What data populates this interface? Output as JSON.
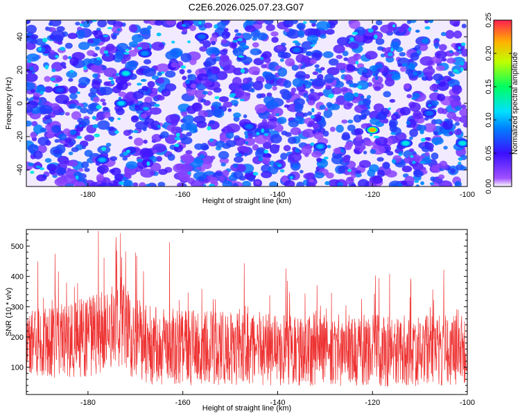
{
  "title": "C2E6.2026.025.07.23.G07",
  "chart_data": [
    {
      "type": "heatmap",
      "title": "",
      "xlabel": "Height of straight line (km)",
      "ylabel": "Frequency (Hz)",
      "xlim": [
        -193,
        -100
      ],
      "ylim": [
        -50,
        50
      ],
      "xticks": [
        -180,
        -160,
        -140,
        -120,
        -100
      ],
      "yticks": [
        -40,
        -20,
        0,
        20,
        40
      ],
      "colorbar": {
        "label": "Normalized spectral amplitude",
        "range": [
          0.0,
          0.25
        ],
        "ticks": [
          0.0,
          0.05,
          0.1,
          0.15,
          0.2,
          0.25
        ],
        "tick_labels": [
          "0.00",
          "0.05",
          "0.10",
          "0.15",
          "0.20",
          "0.25"
        ]
      },
      "background_level": 0.04,
      "peaks": [
        {
          "x": -120,
          "y": -16,
          "value": 0.22
        },
        {
          "x": -172,
          "y": 18,
          "value": 0.12
        },
        {
          "x": -173,
          "y": 0,
          "value": 0.11
        },
        {
          "x": -113,
          "y": -24,
          "value": 0.12
        },
        {
          "x": -101,
          "y": -24,
          "value": 0.12
        },
        {
          "x": -131,
          "y": -26,
          "value": 0.1
        },
        {
          "x": -177,
          "y": -34,
          "value": 0.1
        },
        {
          "x": -168,
          "y": 30,
          "value": 0.09
        },
        {
          "x": -136,
          "y": 32,
          "value": 0.08
        },
        {
          "x": -146,
          "y": -14,
          "value": 0.08
        },
        {
          "x": -156,
          "y": 40,
          "value": 0.08
        },
        {
          "x": -186,
          "y": 8,
          "value": 0.07
        },
        {
          "x": -108,
          "y": -6,
          "value": 0.08
        }
      ]
    },
    {
      "type": "line",
      "title": "",
      "xlabel": "Height of straight line (km)",
      "ylabel": "SNR (10 * v/v)",
      "xlim": [
        -193,
        -100
      ],
      "ylim": [
        10,
        555
      ],
      "xticks": [
        -180,
        -160,
        -140,
        -120,
        -100
      ],
      "yticks": [
        100,
        200,
        300,
        400,
        500
      ],
      "series": [
        {
          "name": "SNR",
          "color": "#ee3333",
          "baseline": [
            [
              -193,
              180
            ],
            [
              -186,
              185
            ],
            [
              -180,
              200
            ],
            [
              -176,
              220
            ],
            [
              -173,
              250
            ],
            [
              -171,
              210
            ],
            [
              -168,
              175
            ],
            [
              -160,
              165
            ],
            [
              -150,
              160
            ],
            [
              -140,
              158
            ],
            [
              -130,
              158
            ],
            [
              -120,
              155
            ],
            [
              -110,
              155
            ],
            [
              -100,
              155
            ]
          ],
          "spread": [
            [
              -193,
              220
            ],
            [
              -175,
              280
            ],
            [
              -173,
              320
            ],
            [
              -170,
              270
            ],
            [
              -160,
              250
            ],
            [
              -140,
              240
            ],
            [
              -120,
              240
            ],
            [
              -100,
              230
            ]
          ],
          "max": 550,
          "min": 15
        }
      ]
    }
  ]
}
